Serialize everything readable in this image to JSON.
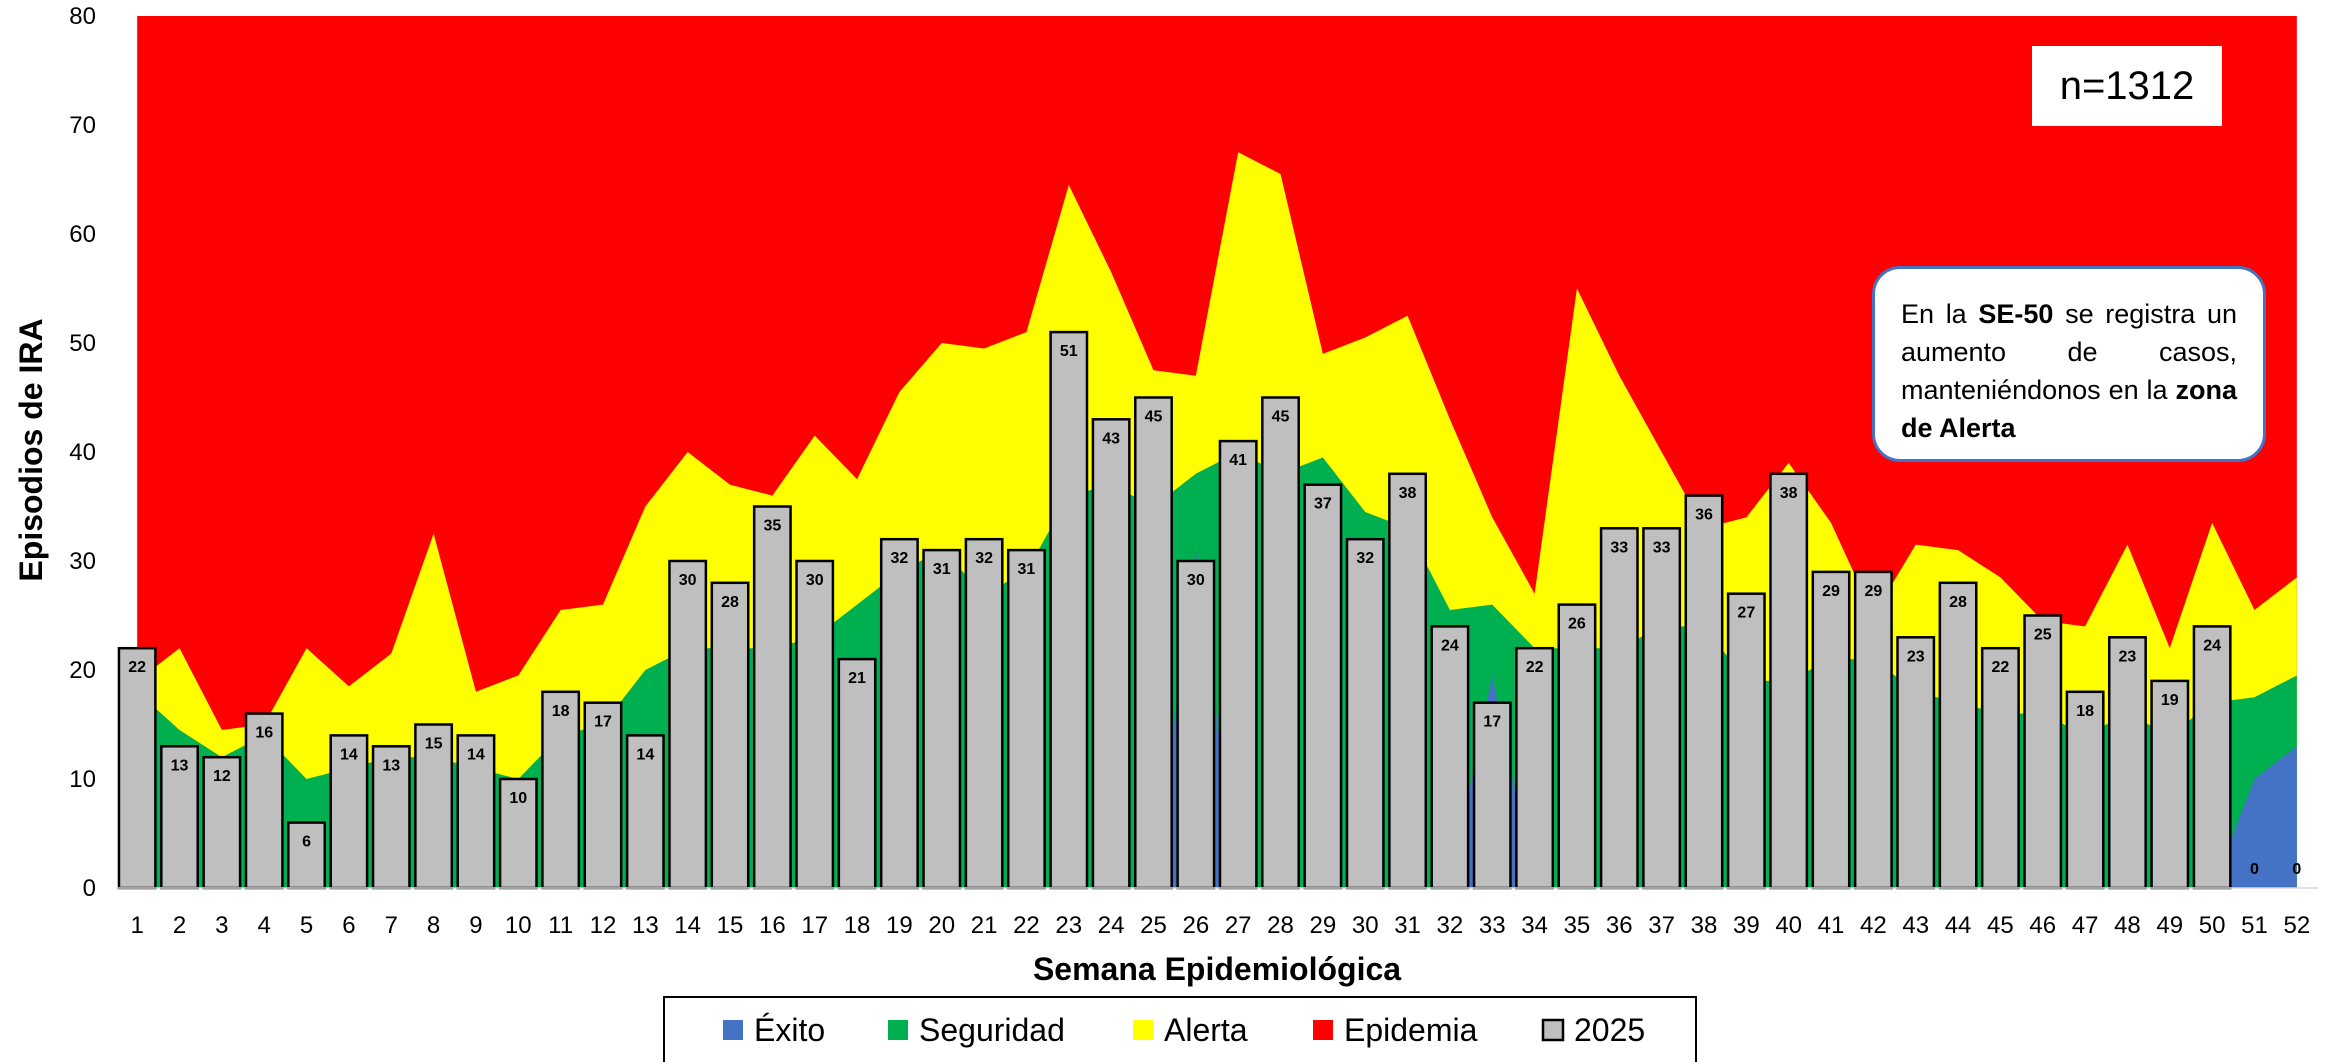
{
  "chart_data": {
    "type": "bar",
    "xlabel": "Semana Epidemiológica",
    "ylabel": "Episodios de IRA",
    "ylim": [
      0,
      80
    ],
    "yticks": [
      0,
      10,
      20,
      30,
      40,
      50,
      60,
      70,
      80
    ],
    "categories": [
      1,
      2,
      3,
      4,
      5,
      6,
      7,
      8,
      9,
      10,
      11,
      12,
      13,
      14,
      15,
      16,
      17,
      18,
      19,
      20,
      21,
      22,
      23,
      24,
      25,
      26,
      27,
      28,
      29,
      30,
      31,
      32,
      33,
      34,
      35,
      36,
      37,
      38,
      39,
      40,
      41,
      42,
      43,
      44,
      45,
      46,
      47,
      48,
      49,
      50,
      51,
      52
    ],
    "bars": {
      "name": "2025",
      "color": "#bfbfbf",
      "values": [
        22,
        13,
        12,
        16,
        6,
        14,
        13,
        15,
        14,
        10,
        18,
        17,
        14,
        30,
        28,
        35,
        30,
        21,
        32,
        31,
        32,
        31,
        51,
        43,
        45,
        30,
        41,
        45,
        37,
        32,
        38,
        24,
        17,
        22,
        26,
        33,
        33,
        36,
        27,
        38,
        29,
        29,
        23,
        28,
        22,
        25,
        18,
        23,
        19,
        24,
        0,
        0
      ]
    },
    "areas": [
      {
        "name": "Éxito",
        "color": "#4472c4",
        "values": [
          0,
          0,
          0,
          0,
          0,
          0,
          0,
          0,
          0,
          0,
          0,
          0,
          0,
          0,
          0,
          0,
          0,
          0,
          0,
          0,
          0,
          0,
          0,
          0,
          0,
          31,
          0,
          0,
          0,
          0,
          0,
          0,
          19.5,
          0,
          0,
          0,
          0,
          0,
          0,
          0,
          0,
          0,
          0,
          0,
          0,
          0,
          0,
          0,
          0,
          0,
          10,
          13
        ]
      },
      {
        "name": "Seguridad",
        "color": "#00b050",
        "values": [
          18,
          14.5,
          12,
          14,
          10,
          11,
          12,
          12,
          11,
          10,
          14,
          15,
          20,
          22,
          22,
          22,
          23,
          26,
          29,
          31,
          27,
          29,
          36,
          37,
          35,
          38,
          40,
          38,
          39.5,
          34.5,
          33,
          25.5,
          26,
          22,
          22,
          22,
          24,
          24,
          19,
          19,
          21,
          21,
          18,
          17,
          16,
          16,
          14,
          16,
          14,
          17,
          17.5,
          19.5
        ]
      },
      {
        "name": "Alerta",
        "color": "#ffff00",
        "values": [
          19,
          22,
          14.5,
          15,
          22,
          18.5,
          21.5,
          32.5,
          18,
          19.5,
          25.5,
          26,
          35,
          40,
          37,
          36,
          41.5,
          37.5,
          45.5,
          50,
          49.5,
          51,
          64.5,
          56.5,
          47.5,
          47,
          67.5,
          65.5,
          49,
          50.5,
          52.5,
          43,
          34,
          27,
          55,
          47,
          40,
          33,
          34,
          39,
          33.5,
          25,
          31.5,
          31,
          28.5,
          24.5,
          24,
          31.5,
          22,
          33.5,
          25.5,
          28.5
        ]
      },
      {
        "name": "Epidemia",
        "color": "#ff0000",
        "values": [
          80,
          80,
          80,
          80,
          80,
          80,
          80,
          80,
          80,
          80,
          80,
          80,
          80,
          80,
          80,
          80,
          80,
          80,
          80,
          80,
          80,
          80,
          80,
          80,
          80,
          80,
          80,
          80,
          80,
          80,
          80,
          80,
          80,
          80,
          80,
          80,
          80,
          80,
          80,
          80,
          80,
          80,
          80,
          80,
          80,
          80,
          80,
          80,
          80,
          80,
          80,
          80
        ]
      }
    ],
    "legend": [
      "Éxito",
      "Seguridad",
      "Alerta",
      "Epidemia",
      "2025"
    ],
    "legend_position": "bottom"
  },
  "annotations": {
    "n_label": "n=1312",
    "note_parts": [
      {
        "text": "En la ",
        "bold": false
      },
      {
        "text": "SE-50",
        "bold": true
      },
      {
        "text": " se registra un aumento de casos, manteniéndonos en la ",
        "bold": false
      },
      {
        "text": "zona de Alerta",
        "bold": true
      }
    ]
  }
}
